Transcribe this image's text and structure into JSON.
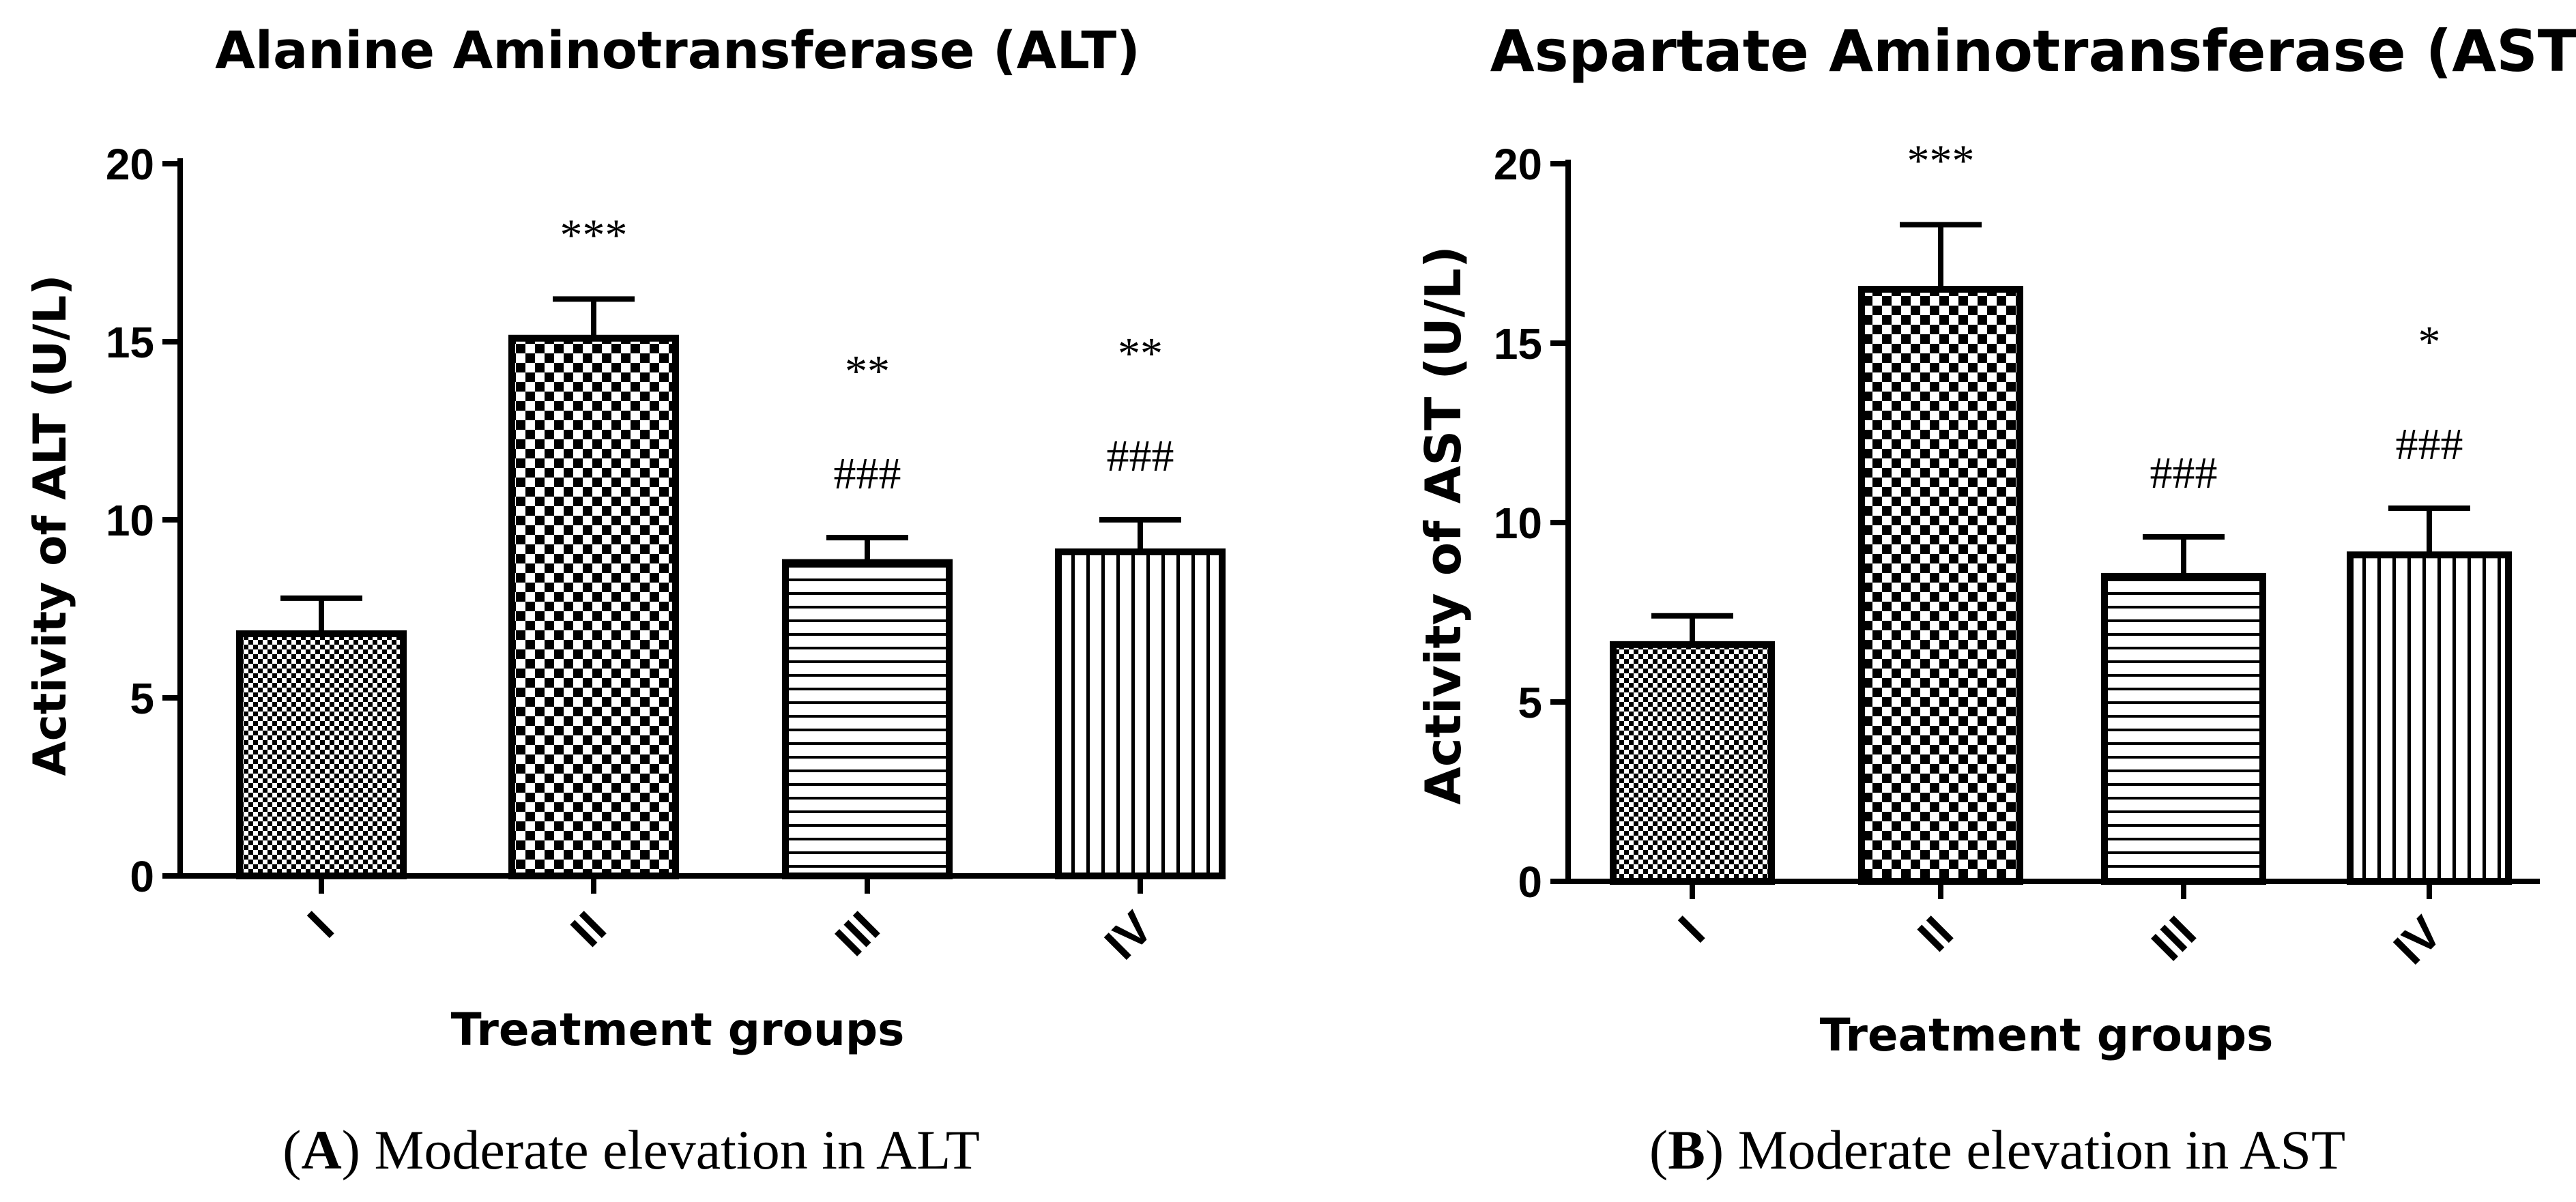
{
  "chart_data": [
    {
      "type": "bar",
      "panel_id": "A",
      "title": "Alanine Aminotransferase (ALT)",
      "xlabel": "Treatment groups",
      "ylabel": "Activity of ALT (U/L)",
      "ylim": [
        0,
        20
      ],
      "yticks": [
        "0",
        "5",
        "10",
        "15",
        "20"
      ],
      "categories": [
        "I",
        "II",
        "III",
        "IV"
      ],
      "values": [
        6.8,
        15.1,
        8.8,
        9.1
      ],
      "errors": [
        1.0,
        1.1,
        0.7,
        0.9
      ],
      "patterns": [
        "fine-checker",
        "coarse-checker",
        "horizontal-lines",
        "vertical-lines"
      ],
      "annotations": [
        [],
        [
          "***"
        ],
        [
          "**",
          "###"
        ],
        [
          "**",
          "###"
        ]
      ],
      "caption_letter": "A",
      "caption_text": "Moderate elevation in ALT"
    },
    {
      "type": "bar",
      "panel_id": "B",
      "title": "Aspartate Aminotransferase (AST)",
      "xlabel": "Treatment groups",
      "ylabel": "Activity of AST (U/L)",
      "ylim": [
        0,
        20
      ],
      "yticks": [
        "0",
        "5",
        "10",
        "15",
        "20"
      ],
      "categories": [
        "I",
        "II",
        "III",
        "IV"
      ],
      "values": [
        6.6,
        16.5,
        8.5,
        9.1
      ],
      "errors": [
        0.8,
        1.8,
        1.1,
        1.3
      ],
      "patterns": [
        "fine-checker",
        "coarse-checker",
        "horizontal-lines",
        "vertical-lines"
      ],
      "annotations": [
        [],
        [
          "***"
        ],
        [
          "###"
        ],
        [
          "*",
          "###"
        ]
      ],
      "caption_letter": "B",
      "caption_text": "Moderate elevation in AST"
    }
  ]
}
